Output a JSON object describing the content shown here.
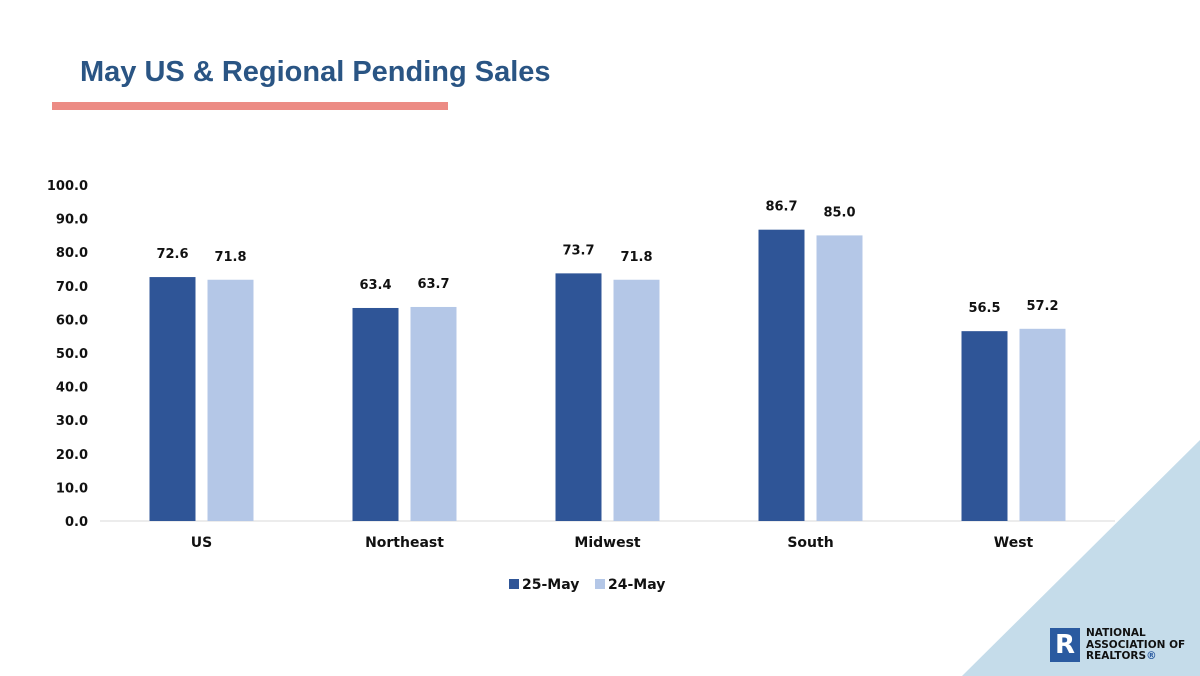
{
  "slide": {
    "title": "May US & Regional Pending Sales",
    "accent_color": "#ec8b84",
    "title_color": "#2a5584"
  },
  "chart_data": {
    "type": "bar",
    "title": "",
    "xlabel": "",
    "ylabel": "",
    "categories": [
      "US",
      "Northeast",
      "Midwest",
      "South",
      "West"
    ],
    "series": [
      {
        "name": "25-May",
        "values": [
          72.6,
          63.4,
          73.7,
          86.7,
          56.5
        ],
        "color": "#2f5597"
      },
      {
        "name": "24-May",
        "values": [
          71.8,
          63.7,
          71.8,
          85.0,
          57.2
        ],
        "color": "#b4c7e7"
      }
    ],
    "ylim": [
      0,
      100
    ],
    "yticks": [
      "0.0",
      "10.0",
      "20.0",
      "30.0",
      "40.0",
      "50.0",
      "60.0",
      "70.0",
      "80.0",
      "90.0",
      "100.0"
    ],
    "data_labels": [
      [
        "72.6",
        "63.4",
        "73.7",
        "86.7",
        "56.5"
      ],
      [
        "71.8",
        "63.7",
        "71.8",
        "85.0",
        "57.2"
      ]
    ],
    "grid": false,
    "legend": "bottom"
  },
  "logo": {
    "line1": "NATIONAL",
    "line2": "ASSOCIATION OF",
    "line3": "REALTORS",
    "registered_mark": "®",
    "icon": "realtor-r-icon",
    "color": "#2a5aa0"
  },
  "decoration": {
    "corner_triangle_color": "#c5dcea"
  }
}
